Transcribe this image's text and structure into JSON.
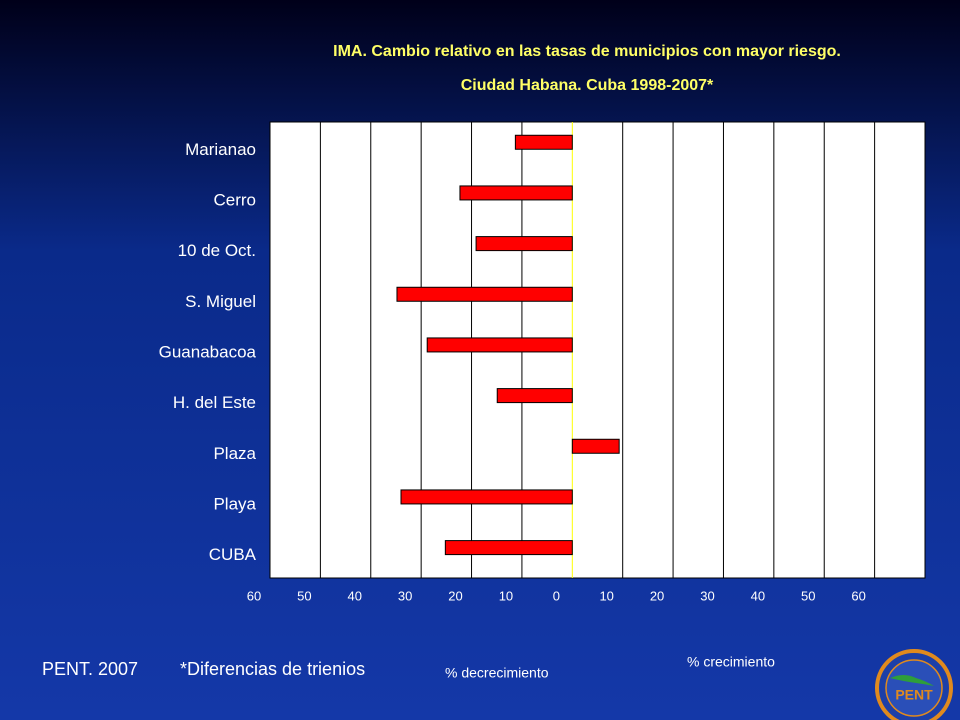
{
  "chart_data": {
    "type": "bar",
    "orientation": "horizontal",
    "title": "IMA. Cambio relativo en las tasas de municipios con mayor riesgo.",
    "subtitle": "Ciudad Habana. Cuba 1998-2007*",
    "categories": [
      "Marianao",
      "Cerro",
      "10 de Oct.",
      "S. Miguel",
      "Guanabacoa",
      "H. del Este",
      "Plaza",
      "Playa",
      "CUBA"
    ],
    "values": [
      -11.3,
      -22.3,
      -19.1,
      -34.8,
      -28.8,
      -14.9,
      9.3,
      -34.0,
      -25.2
    ],
    "color": "#ff0000",
    "xlim": [
      -60,
      70
    ],
    "xticks": [
      {
        "value": -60,
        "label": "60"
      },
      {
        "value": -50,
        "label": "50"
      },
      {
        "value": -40,
        "label": "40"
      },
      {
        "value": -30,
        "label": "30"
      },
      {
        "value": -20,
        "label": "20"
      },
      {
        "value": -10,
        "label": "10"
      },
      0,
      10,
      20,
      30,
      40,
      50,
      60
    ],
    "grid": true,
    "annotations": [
      "% decrecimiento",
      "% crecimiento"
    ]
  },
  "footer": {
    "source": "PENT. 2007",
    "note": "*Diferencias de trienios",
    "logo": "PENT"
  }
}
